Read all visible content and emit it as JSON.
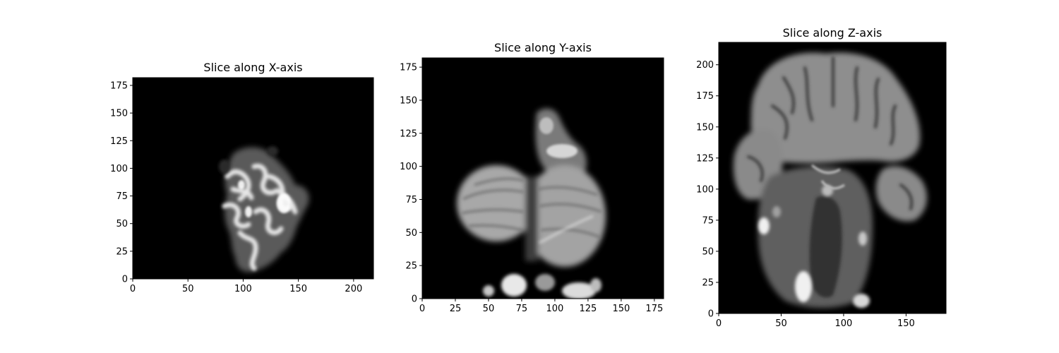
{
  "figure": {
    "background": "#ffffff",
    "axis_color": "#000000",
    "image_background": "#000000",
    "colormap": "gray"
  },
  "panels": [
    {
      "id": "x",
      "title": "Slice along X-axis",
      "x_range": [
        0,
        218
      ],
      "y_range": [
        0,
        182
      ],
      "x_ticks": [
        "0",
        "50",
        "100",
        "150",
        "200"
      ],
      "y_ticks": [
        "0",
        "25",
        "50",
        "75",
        "100",
        "125",
        "150",
        "175"
      ]
    },
    {
      "id": "y",
      "title": "Slice along Y-axis",
      "x_range": [
        0,
        182
      ],
      "y_range": [
        0,
        182
      ],
      "x_ticks": [
        "0",
        "25",
        "50",
        "75",
        "100",
        "125",
        "150",
        "175"
      ],
      "y_ticks": [
        "0",
        "25",
        "50",
        "75",
        "100",
        "125",
        "150",
        "175"
      ]
    },
    {
      "id": "z",
      "title": "Slice along Z-axis",
      "x_range": [
        0,
        182
      ],
      "y_range": [
        0,
        218
      ],
      "x_ticks": [
        "0",
        "50",
        "100",
        "150"
      ],
      "y_ticks": [
        "0",
        "25",
        "50",
        "75",
        "100",
        "125",
        "150",
        "175",
        "200"
      ]
    }
  ]
}
